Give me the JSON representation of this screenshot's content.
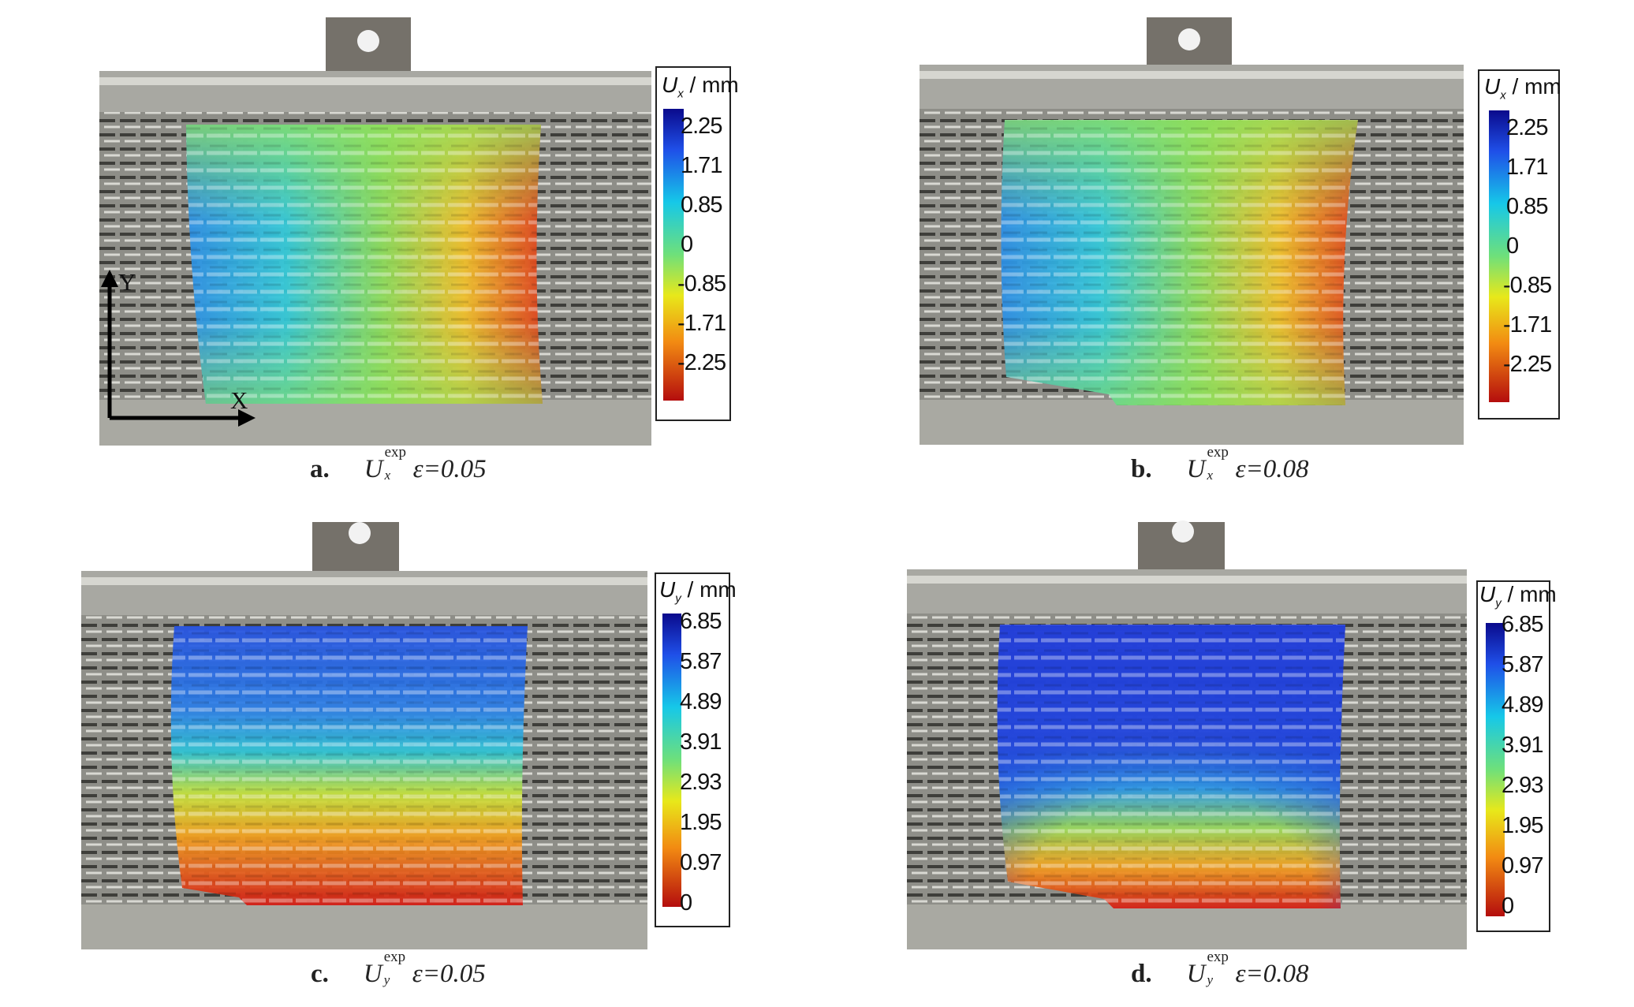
{
  "axes": {
    "y_label": "Y",
    "x_label": "X"
  },
  "panels": [
    {
      "id": "a",
      "label": "a.",
      "symbol": "U",
      "subscript": "x",
      "superscript": "exp",
      "strain_label": "ε=0.05",
      "colorbar": {
        "title_symbol": "U",
        "title_subscript": "x",
        "title_unit": "/ mm",
        "ticks": [
          "2.25",
          "1.71",
          "0.85",
          "0",
          "-0.85",
          "-1.71",
          "-2.25"
        ]
      }
    },
    {
      "id": "b",
      "label": "b.",
      "symbol": "U",
      "subscript": "x",
      "superscript": "exp",
      "strain_label": "ε=0.08",
      "colorbar": {
        "title_symbol": "U",
        "title_subscript": "x",
        "title_unit": "/ mm",
        "ticks": [
          "2.25",
          "1.71",
          "0.85",
          "0",
          "-0.85",
          "-1.71",
          "-2.25"
        ]
      }
    },
    {
      "id": "c",
      "label": "c.",
      "symbol": "U",
      "subscript": "y",
      "superscript": "exp",
      "strain_label": "ε=0.05",
      "colorbar": {
        "title_symbol": "U",
        "title_subscript": "y",
        "title_unit": "/ mm",
        "ticks": [
          "6.85",
          "5.87",
          "4.89",
          "3.91",
          "2.93",
          "1.95",
          "0.97",
          "0"
        ]
      }
    },
    {
      "id": "d",
      "label": "d.",
      "symbol": "U",
      "subscript": "y",
      "superscript": "exp",
      "strain_label": "ε=0.08",
      "colorbar": {
        "title_symbol": "U",
        "title_subscript": "y",
        "title_unit": "/ mm",
        "ticks": [
          "6.85",
          "5.87",
          "4.89",
          "3.91",
          "2.93",
          "1.95",
          "0.97",
          "0"
        ]
      }
    }
  ]
}
